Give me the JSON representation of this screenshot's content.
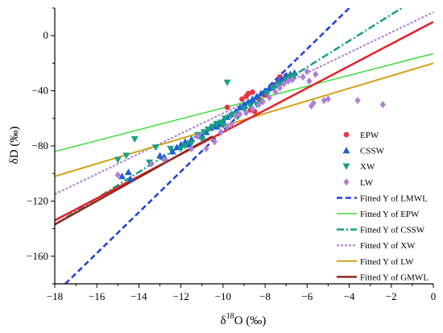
{
  "chart_data": {
    "type": "scatter",
    "title": "",
    "xlabel_main": "δ",
    "xlabel_sup": "18",
    "xlabel_rest": "O (‰)",
    "ylabel": "δD (‰)",
    "xlim": [
      -18,
      0
    ],
    "ylim": [
      -180,
      20
    ],
    "x_ticks": [
      -18,
      -16,
      -14,
      -12,
      -10,
      -8,
      -6,
      -4,
      -2,
      0
    ],
    "x_tick_labels": [
      "−18",
      "−16",
      "−14",
      "−12",
      "−10",
      "−8",
      "−6",
      "−4",
      "−2",
      "0"
    ],
    "y_ticks": [
      0,
      -40,
      -80,
      -120,
      -160
    ],
    "y_tick_labels": [
      "0",
      "−40",
      "−80",
      "−120",
      "−160"
    ],
    "legend_position": "right",
    "scatter_series": [
      {
        "name": "EPW",
        "marker": "circle",
        "color": "#e8383d",
        "points": [
          [
            -9.8,
            -52
          ],
          [
            -8.9,
            -44
          ],
          [
            -8.8,
            -42
          ],
          [
            -8.7,
            -54
          ],
          [
            -8.6,
            -41
          ],
          [
            -8.5,
            -55
          ],
          [
            -8.3,
            -46
          ],
          [
            -8.0,
            -43
          ],
          [
            -7.6,
            -36
          ],
          [
            -7.3,
            -30
          ],
          [
            -7.0,
            -29
          ],
          [
            -9.1,
            -46
          ]
        ]
      },
      {
        "name": "CSSW",
        "marker": "triangle-up",
        "color": "#1f5fd8",
        "points": [
          [
            -14.8,
            -102
          ],
          [
            -14.5,
            -99
          ],
          [
            -14.4,
            -104
          ],
          [
            -13.0,
            -87
          ],
          [
            -12.4,
            -84
          ],
          [
            -12.2,
            -81
          ],
          [
            -12.0,
            -79
          ],
          [
            -11.8,
            -77
          ],
          [
            -11.5,
            -75
          ],
          [
            -11.2,
            -72
          ],
          [
            -11.0,
            -73
          ],
          [
            -10.8,
            -70
          ],
          [
            -10.6,
            -67
          ],
          [
            -10.4,
            -65
          ],
          [
            -10.2,
            -64
          ],
          [
            -10.0,
            -62
          ],
          [
            -9.8,
            -59
          ],
          [
            -9.6,
            -57
          ],
          [
            -9.4,
            -55
          ],
          [
            -9.2,
            -52
          ],
          [
            -9.0,
            -50
          ],
          [
            -8.8,
            -48
          ],
          [
            -8.6,
            -46
          ],
          [
            -8.4,
            -44
          ],
          [
            -8.2,
            -42
          ],
          [
            -8.0,
            -40
          ],
          [
            -7.8,
            -38
          ],
          [
            -7.6,
            -36
          ],
          [
            -7.4,
            -33
          ],
          [
            -7.2,
            -31
          ],
          [
            -7.0,
            -29
          ],
          [
            -6.8,
            -28
          ],
          [
            -6.6,
            -27
          ],
          [
            -10.3,
            -66
          ],
          [
            -11.6,
            -79
          ],
          [
            -12.8,
            -88
          ]
        ]
      },
      {
        "name": "XW",
        "marker": "triangle-down",
        "color": "#18a085",
        "points": [
          [
            -15.0,
            -90
          ],
          [
            -14.6,
            -87
          ],
          [
            -14.2,
            -75
          ],
          [
            -13.5,
            -92
          ],
          [
            -13.2,
            -81
          ],
          [
            -12.5,
            -82
          ],
          [
            -12.0,
            -82
          ],
          [
            -11.8,
            -80
          ],
          [
            -11.5,
            -78
          ],
          [
            -11.2,
            -72
          ],
          [
            -10.9,
            -70
          ],
          [
            -10.7,
            -68
          ],
          [
            -10.5,
            -66
          ],
          [
            -10.3,
            -64
          ],
          [
            -10.1,
            -63
          ],
          [
            -9.9,
            -60
          ],
          [
            -9.8,
            -34
          ],
          [
            -9.6,
            -58
          ],
          [
            -9.4,
            -57
          ],
          [
            -9.0,
            -53
          ],
          [
            -8.7,
            -51
          ],
          [
            -8.4,
            -50
          ],
          [
            -8.2,
            -48
          ],
          [
            -7.9,
            -42
          ],
          [
            -7.6,
            -38
          ],
          [
            -7.3,
            -35
          ],
          [
            -7.0,
            -32
          ],
          [
            -6.8,
            -30
          ],
          [
            -6.6,
            -29
          ],
          [
            -9.3,
            -59
          ],
          [
            -10.0,
            -65
          ],
          [
            -11.0,
            -75
          ]
        ]
      },
      {
        "name": "LW",
        "marker": "diamond",
        "color": "#b07fd8",
        "points": [
          [
            -15.0,
            -101
          ],
          [
            -13.4,
            -93
          ],
          [
            -12.8,
            -90
          ],
          [
            -11.5,
            -82
          ],
          [
            -11.2,
            -73
          ],
          [
            -10.8,
            -82
          ],
          [
            -10.4,
            -77
          ],
          [
            -10.1,
            -70
          ],
          [
            -9.8,
            -66
          ],
          [
            -9.6,
            -64
          ],
          [
            -9.4,
            -58
          ],
          [
            -9.2,
            -57
          ],
          [
            -8.9,
            -56
          ],
          [
            -8.6,
            -53
          ],
          [
            -8.3,
            -50
          ],
          [
            -8.1,
            -48
          ],
          [
            -7.8,
            -45
          ],
          [
            -7.5,
            -41
          ],
          [
            -7.3,
            -38
          ],
          [
            -7.1,
            -35
          ],
          [
            -6.9,
            -33
          ],
          [
            -6.7,
            -32
          ],
          [
            -6.2,
            -30
          ],
          [
            -6.0,
            -26
          ],
          [
            -5.9,
            -33
          ],
          [
            -5.6,
            -28
          ],
          [
            -5.8,
            -51
          ],
          [
            -5.7,
            -49
          ],
          [
            -5.2,
            -47
          ],
          [
            -5.0,
            -46
          ],
          [
            -3.6,
            -47
          ],
          [
            -2.4,
            -50
          ]
        ]
      }
    ],
    "line_series": [
      {
        "name": "Fitted Y of LMWL",
        "color": "#1f3fd8",
        "dash": "7,4",
        "width": 2.5,
        "x": [
          -17.5,
          -4.0
        ],
        "y": [
          -180,
          20
        ]
      },
      {
        "name": "Fitted Y of EPW",
        "color": "#3ddc3d",
        "dash": "",
        "width": 1.5,
        "x": [
          -18,
          0
        ],
        "y": [
          -84,
          -13
        ]
      },
      {
        "name": "Fitted Y of CSSW",
        "color": "#18a085",
        "dash": "9,3,2,3",
        "width": 2.5,
        "x": [
          -18,
          -1.5
        ],
        "y": [
          -137,
          20
        ]
      },
      {
        "name": "Fitted Y of XW",
        "color": "#b07fd8",
        "dash": "3,2",
        "width": 2,
        "x": [
          -18,
          0
        ],
        "y": [
          -115,
          17
        ]
      },
      {
        "name": "Fitted Y of LW",
        "color": "#d4a017",
        "dash": "",
        "width": 2,
        "x": [
          -18,
          0
        ],
        "y": [
          -102,
          -20
        ]
      },
      {
        "name": "Fitted Y of GMWL",
        "color": "#e8202a",
        "dash": "",
        "width": 2.5,
        "x": [
          -18,
          0
        ],
        "y": [
          -134,
          10
        ]
      },
      {
        "name": "Fitted Y of GMWL",
        "color": "#8b2a1d",
        "dash": "",
        "width": 2.5,
        "x": [
          -18,
          -10.5
        ],
        "y": [
          -137,
          -73
        ],
        "legend": false
      }
    ],
    "legend_entries": [
      {
        "label": "EPW",
        "kind": "marker",
        "marker": "circle",
        "color": "#e8383d"
      },
      {
        "label": "CSSW",
        "kind": "marker",
        "marker": "triangle-up",
        "color": "#1f5fd8"
      },
      {
        "label": "XW",
        "kind": "marker",
        "marker": "triangle-down",
        "color": "#18a085"
      },
      {
        "label": "LW",
        "kind": "marker",
        "marker": "diamond",
        "color": "#b07fd8"
      },
      {
        "label": "Fitted Y of LMWL",
        "kind": "line",
        "color": "#1f3fd8",
        "dash": "7,4",
        "width": 2.5
      },
      {
        "label": "Fitted Y of EPW",
        "kind": "line",
        "color": "#3ddc3d",
        "dash": "",
        "width": 1.5
      },
      {
        "label": "Fitted Y of CSSW",
        "kind": "line",
        "color": "#18a085",
        "dash": "9,3,2,3",
        "width": 2.5
      },
      {
        "label": "Fitted Y of XW",
        "kind": "line",
        "color": "#b07fd8",
        "dash": "3,2",
        "width": 2
      },
      {
        "label": "Fitted Y of LW",
        "kind": "line",
        "color": "#d4a017",
        "dash": "",
        "width": 2
      },
      {
        "label": "Fitted Y of GMWL",
        "kind": "line",
        "color": "#8b2a1d",
        "dash": "",
        "width": 2.5
      }
    ]
  }
}
